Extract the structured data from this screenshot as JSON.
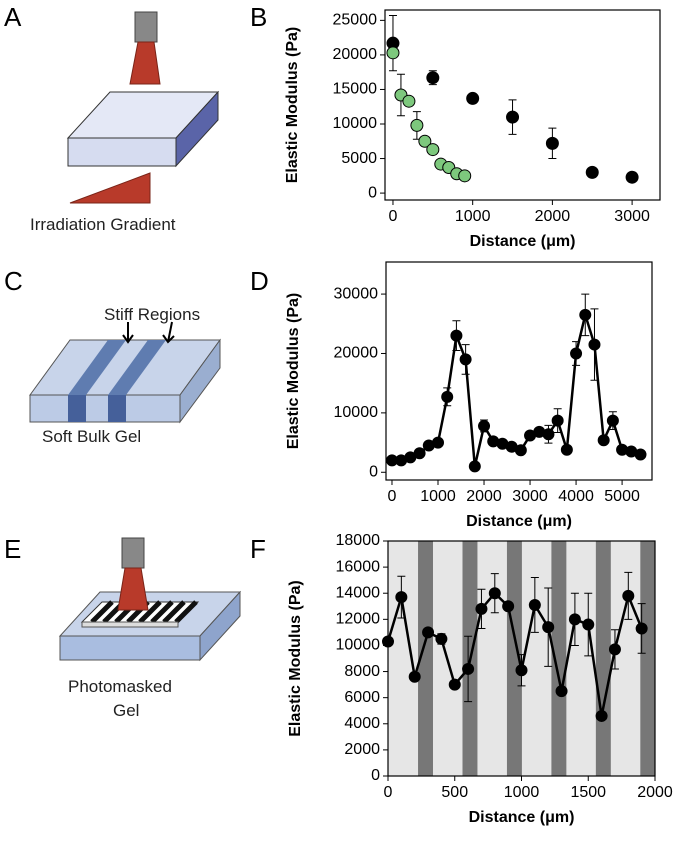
{
  "panel_labels": [
    "A",
    "B",
    "C",
    "D",
    "E",
    "F"
  ],
  "diagrams": {
    "gradient_label": "Irradiation Gradient",
    "stiff_label": "Stiff Regions",
    "bulk_label": "Soft Bulk Gel",
    "mask_label": [
      "Photomasked",
      "Gel"
    ]
  },
  "chart_data": [
    {
      "type": "scatter",
      "x_label": "Distance (μm)",
      "y_label": "Elastic Modulus (Pa)",
      "xlim": [
        -100,
        3350
      ],
      "ylim": [
        -1000,
        26500
      ],
      "xticks": [
        0,
        1000,
        2000,
        3000
      ],
      "yticks": [
        0,
        5000,
        10000,
        15000,
        20000,
        25000
      ],
      "series": [
        {
          "color": "#000000",
          "x": [
            0,
            500,
            1000,
            1500,
            2000,
            2500,
            3000
          ],
          "values": [
            21700,
            16700,
            13700,
            11000,
            7200,
            3000,
            2300
          ],
          "errors": [
            4000,
            1000,
            null,
            2500,
            2200,
            null,
            null
          ]
        },
        {
          "color": "#7dc87d",
          "x": [
            0,
            100,
            200,
            300,
            400,
            500,
            600,
            700,
            800,
            900
          ],
          "values": [
            20300,
            14200,
            13300,
            9800,
            7500,
            6300,
            4200,
            3700,
            2800,
            2500
          ],
          "errors": [
            null,
            3000,
            null,
            2000,
            null,
            null,
            null,
            null,
            null,
            null
          ]
        }
      ]
    },
    {
      "type": "line",
      "x_label": "Distance (μm)",
      "y_label": "Elastic Modulus (Pa)",
      "xlim": [
        -130,
        5650
      ],
      "ylim": [
        -1300,
        35400
      ],
      "xticks": [
        0,
        1000,
        2000,
        3000,
        4000,
        5000
      ],
      "yticks": [
        0,
        10000,
        20000,
        30000
      ],
      "series": [
        {
          "color": "#000000",
          "x": [
            0,
            200,
            400,
            600,
            800,
            1000,
            1200,
            1400,
            1600,
            1800,
            2000,
            2200,
            2400,
            2600,
            2800,
            3000,
            3200,
            3400,
            3600,
            3800,
            4000,
            4200,
            4400,
            4600,
            4800,
            5000,
            5200,
            5400
          ],
          "values": [
            2000,
            2000,
            2500,
            3200,
            4500,
            5000,
            12700,
            23000,
            19000,
            1000,
            7800,
            5200,
            4800,
            4300,
            3700,
            6200,
            6800,
            6400,
            8700,
            3800,
            20000,
            26500,
            21500,
            5400,
            8700,
            3800,
            3500,
            3000
          ],
          "errors": [
            null,
            null,
            null,
            null,
            null,
            null,
            1500,
            2500,
            2500,
            null,
            1000,
            null,
            null,
            null,
            null,
            null,
            null,
            1500,
            2000,
            null,
            2000,
            3500,
            6000,
            null,
            1500,
            null,
            null,
            null
          ]
        }
      ]
    },
    {
      "type": "line",
      "x_label": "Distance (μm)",
      "y_label": "Elastic Modulus (Pa)",
      "xlim": [
        0,
        2000
      ],
      "ylim": [
        0,
        18000
      ],
      "xticks": [
        0,
        500,
        1000,
        1500,
        2000
      ],
      "yticks": [
        0,
        2000,
        4000,
        6000,
        8000,
        10000,
        12000,
        14000,
        16000,
        18000
      ],
      "bands": [
        [
          225,
          337
        ],
        [
          558,
          670
        ],
        [
          891,
          1003
        ],
        [
          1224,
          1336
        ],
        [
          1557,
          1669
        ],
        [
          1890,
          2000
        ]
      ],
      "band_color": "#777777",
      "background": "#e6e6e6",
      "series": [
        {
          "color": "#000000",
          "x": [
            0,
            100,
            200,
            300,
            400,
            500,
            600,
            700,
            800,
            900,
            1000,
            1100,
            1200,
            1300,
            1400,
            1500,
            1600,
            1700,
            1800,
            1900
          ],
          "values": [
            10300,
            13700,
            7600,
            11000,
            10500,
            7000,
            8200,
            12800,
            14000,
            13000,
            8100,
            13100,
            11400,
            6500,
            12000,
            11600,
            4600,
            9700,
            13800,
            11300
          ],
          "errors": [
            null,
            1600,
            null,
            300,
            400,
            null,
            2500,
            1500,
            1500,
            null,
            1200,
            2100,
            3000,
            300,
            2000,
            2400,
            null,
            1500,
            1800,
            1900
          ]
        }
      ]
    }
  ]
}
